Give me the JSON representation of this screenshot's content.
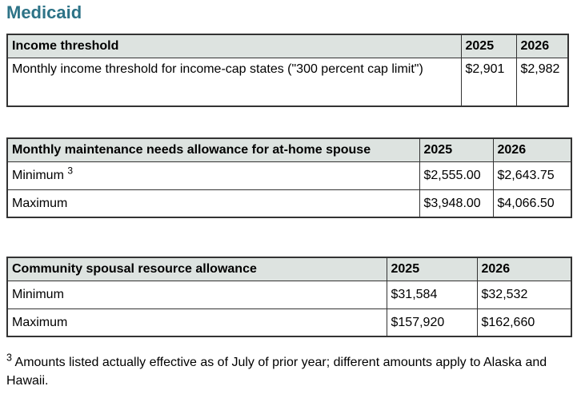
{
  "page": {
    "title": "Medicaid"
  },
  "colors": {
    "heading_teal": "#2d7387",
    "table_header_bg": "#dde3e0",
    "table_border": "#333333",
    "text": "#000000",
    "background": "#ffffff"
  },
  "tables": [
    {
      "name": "income-threshold",
      "headers": [
        "Income threshold",
        "2025",
        "2026"
      ],
      "rows": [
        {
          "label": "Monthly income threshold for income-cap states (\"300 percent cap limit\")",
          "sup": "",
          "y2025": "$2,901",
          "y2026": "$2,982"
        }
      ]
    },
    {
      "name": "monthly-maintenance-needs-allowance",
      "headers": [
        "Monthly maintenance needs allowance for at-home spouse",
        "2025",
        "2026"
      ],
      "rows": [
        {
          "label": "Minimum ",
          "sup": "3",
          "y2025": "$2,555.00",
          "y2026": "$2,643.75"
        },
        {
          "label": "Maximum",
          "sup": "",
          "y2025": "$3,948.00",
          "y2026": "$4,066.50"
        }
      ]
    },
    {
      "name": "community-spousal-resource-allowance",
      "headers": [
        "Community spousal resource allowance",
        "2025",
        "2026"
      ],
      "rows": [
        {
          "label": "Minimum",
          "sup": "",
          "y2025": "$31,584",
          "y2026": "$32,532"
        },
        {
          "label": "Maximum",
          "sup": "",
          "y2025": "$157,920",
          "y2026": "$162,660"
        }
      ]
    }
  ],
  "footnote": {
    "marker": "3",
    "text": "Amounts listed actually effective as of July of prior year; different amounts apply to Alaska and Hawaii."
  }
}
